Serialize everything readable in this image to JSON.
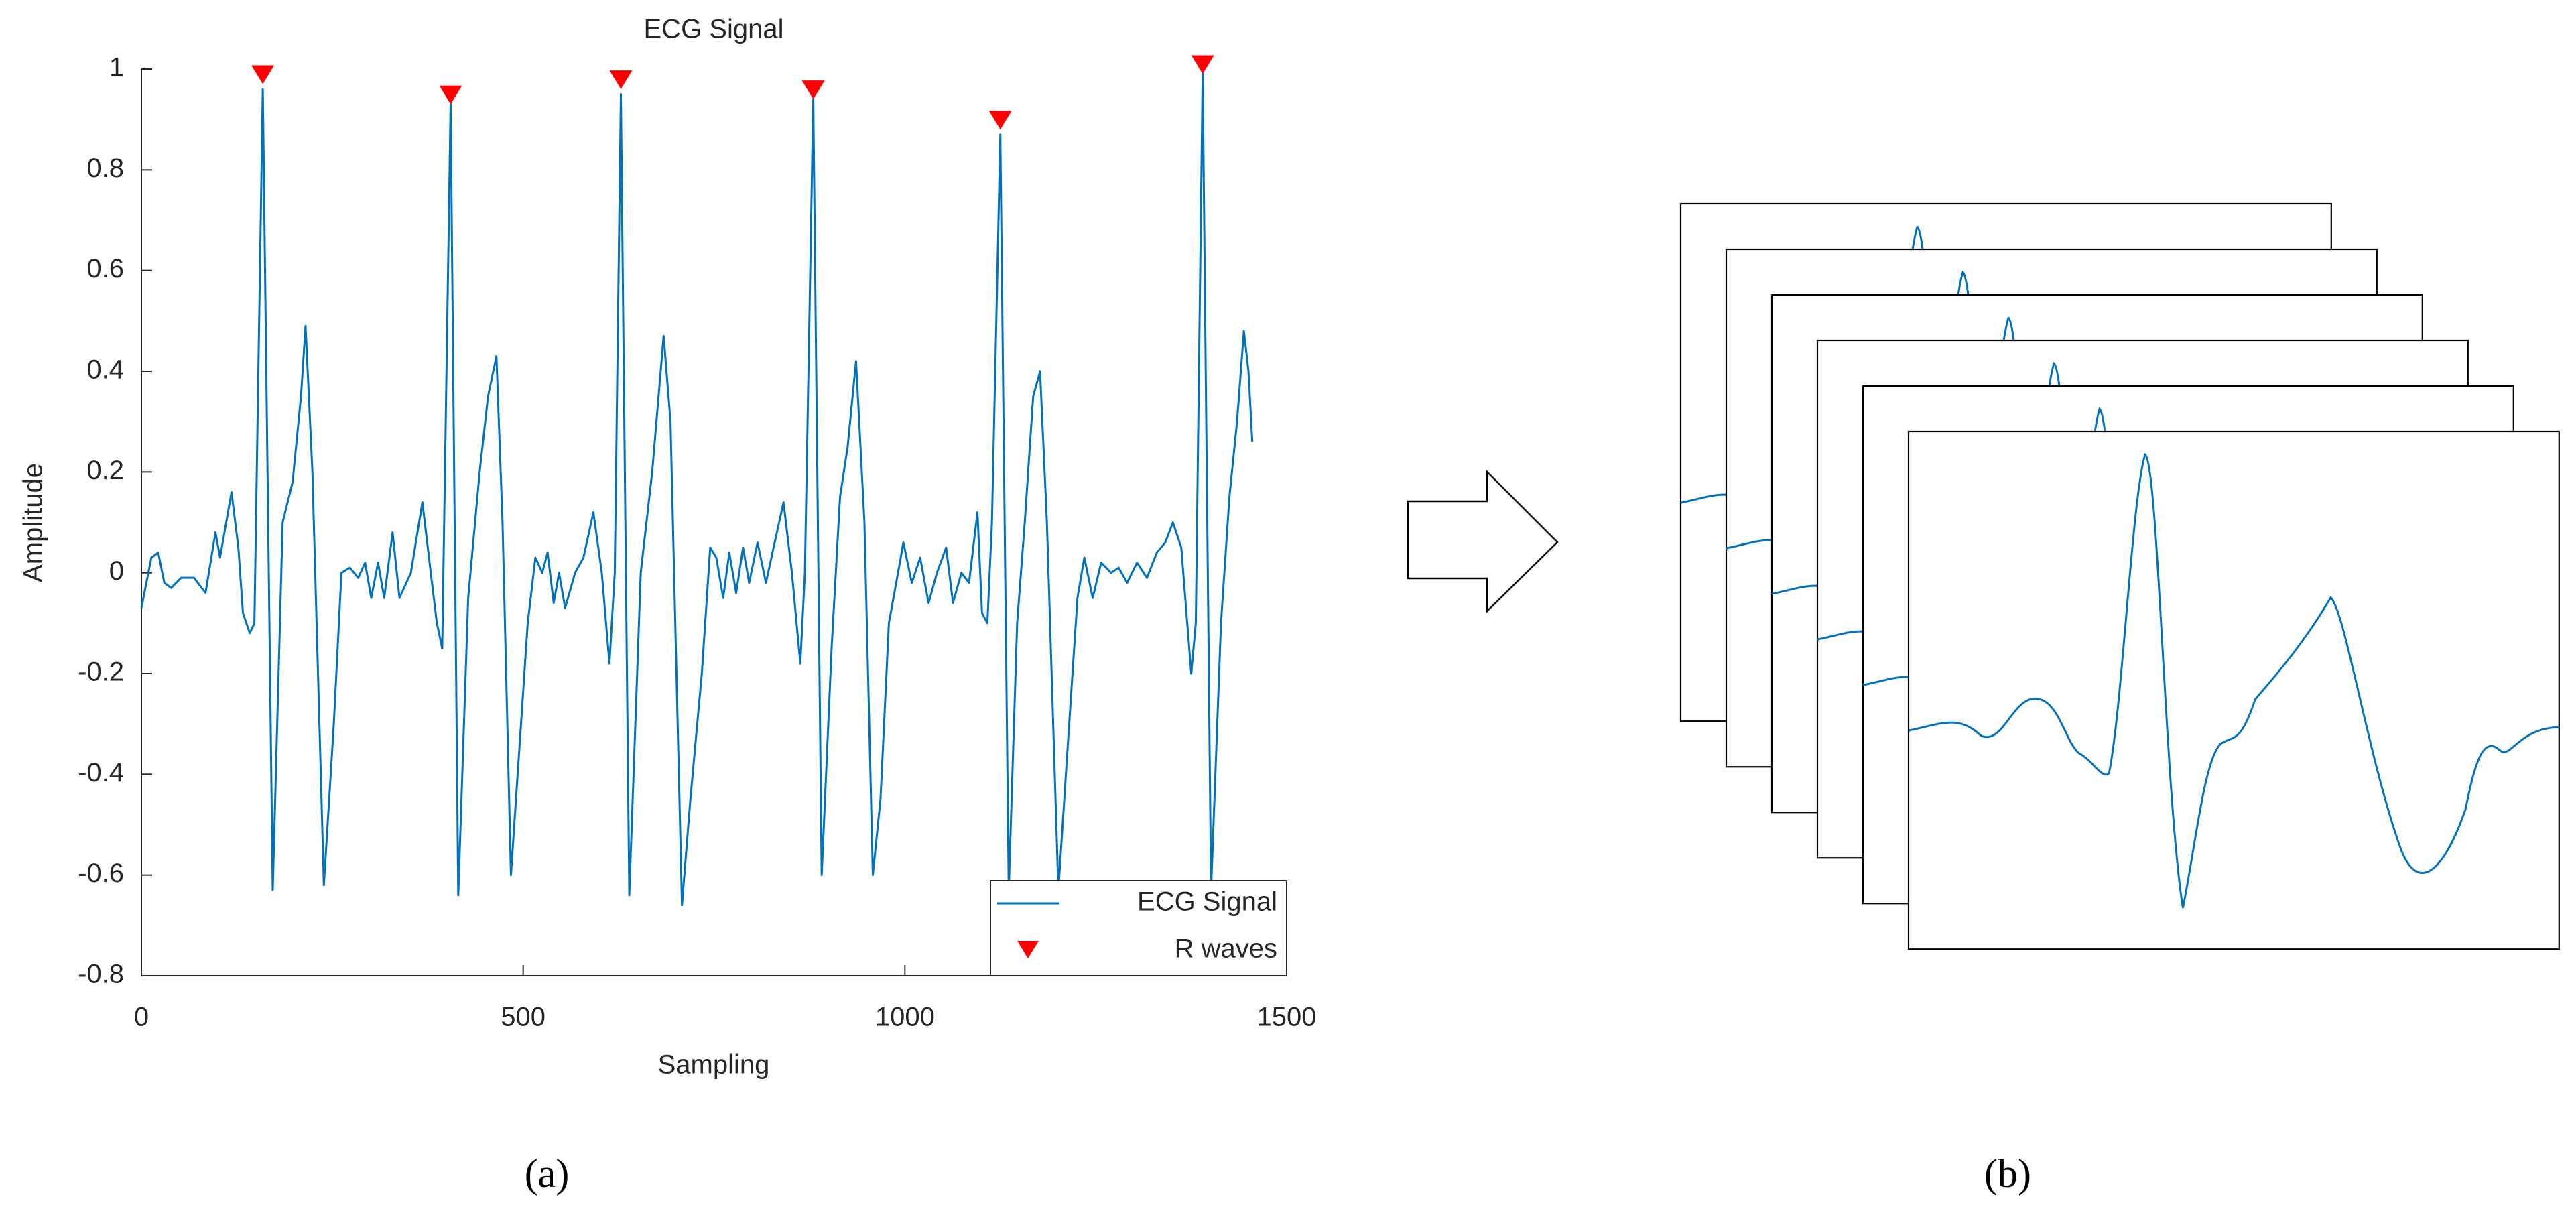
{
  "chart_data": {
    "type": "line",
    "title": "ECG Signal",
    "x_label": "Sampling",
    "y_label": "Amplitude",
    "xlim": [
      0,
      1500
    ],
    "ylim": [
      -0.8,
      1
    ],
    "xticks": [
      0,
      500,
      1000,
      1500
    ],
    "yticks": [
      -0.8,
      -0.6,
      -0.4,
      -0.2,
      0,
      0.2,
      0.4,
      0.6,
      0.8,
      1
    ],
    "legend": "lower right",
    "series": [
      {
        "name": "ECG Signal",
        "color": "#0072bd",
        "x": [
          0,
          13,
          22,
          30,
          39,
          52,
          69,
          84,
          97,
          103,
          118,
          127,
          133,
          142,
          148,
          159,
          172,
          185,
          198,
          209,
          215,
          224,
          239,
          252,
          262,
          273,
          284,
          293,
          301,
          310,
          318,
          329,
          338,
          353,
          368,
          379,
          387,
          394,
          405,
          415,
          428,
          443,
          454,
          465,
          473,
          484,
          495,
          506,
          516,
          525,
          532,
          540,
          547,
          555,
          568,
          579,
          592,
          603,
          613,
          620,
          628,
          639,
          654,
          669,
          684,
          693,
          708,
          719,
          734,
          745,
          753,
          762,
          770,
          779,
          788,
          796,
          807,
          818,
          828,
          841,
          852,
          863,
          869,
          880,
          891,
          904,
          915,
          925,
          936,
          947,
          958,
          968,
          979,
          991,
          998,
          1009,
          1020,
          1031,
          1042,
          1054,
          1063,
          1074,
          1084,
          1095,
          1101,
          1108,
          1114,
          1125,
          1136,
          1147,
          1157,
          1168,
          1177,
          1186,
          1201,
          1213,
          1226,
          1235,
          1246,
          1257,
          1270,
          1280,
          1291,
          1304,
          1317,
          1330,
          1341,
          1351,
          1362,
          1375,
          1381,
          1390,
          1401,
          1414,
          1425,
          1435,
          1444,
          1450,
          1455
        ],
        "values": [
          -0.07,
          0.03,
          0.04,
          -0.02,
          -0.03,
          -0.01,
          -0.01,
          -0.04,
          0.08,
          0.03,
          0.16,
          0.05,
          -0.08,
          -0.12,
          -0.1,
          0.96,
          -0.63,
          0.1,
          0.18,
          0.35,
          0.49,
          0.2,
          -0.62,
          -0.3,
          0.0,
          0.01,
          -0.01,
          0.02,
          -0.05,
          0.02,
          -0.05,
          0.08,
          -0.05,
          0.0,
          0.14,
          0.0,
          -0.1,
          -0.15,
          0.93,
          -0.64,
          -0.05,
          0.2,
          0.35,
          0.43,
          0.1,
          -0.6,
          -0.35,
          -0.1,
          0.03,
          0.0,
          0.04,
          -0.06,
          0.0,
          -0.07,
          0.0,
          0.03,
          0.12,
          0.0,
          -0.18,
          0.0,
          0.95,
          -0.64,
          0.0,
          0.2,
          0.47,
          0.3,
          -0.66,
          -0.45,
          -0.2,
          0.05,
          0.03,
          -0.05,
          0.04,
          -0.04,
          0.05,
          -0.02,
          0.06,
          -0.02,
          0.05,
          0.14,
          0.0,
          -0.18,
          0.0,
          0.94,
          -0.6,
          -0.15,
          0.15,
          0.25,
          0.42,
          0.1,
          -0.6,
          -0.45,
          -0.1,
          0.0,
          0.06,
          -0.02,
          0.03,
          -0.06,
          0.0,
          0.05,
          -0.06,
          0.0,
          -0.02,
          0.12,
          -0.08,
          -0.1,
          0.1,
          0.87,
          -0.63,
          -0.1,
          0.1,
          0.35,
          0.4,
          0.1,
          -0.63,
          -0.35,
          -0.05,
          0.03,
          -0.05,
          0.02,
          0.0,
          0.01,
          -0.02,
          0.02,
          -0.01,
          0.04,
          0.06,
          0.1,
          0.05,
          -0.2,
          -0.1,
          0.99,
          -0.63,
          -0.1,
          0.15,
          0.3,
          0.48,
          0.4,
          0.26
        ]
      },
      {
        "name": "R waves",
        "color": "#ff0000",
        "marker": "triangle-down",
        "x": [
          159,
          405,
          628,
          880,
          1125,
          1390
        ],
        "values": [
          0.97,
          0.93,
          0.96,
          0.94,
          0.88,
          0.99
        ]
      }
    ]
  },
  "captions": [
    "(a)",
    "(b)"
  ]
}
